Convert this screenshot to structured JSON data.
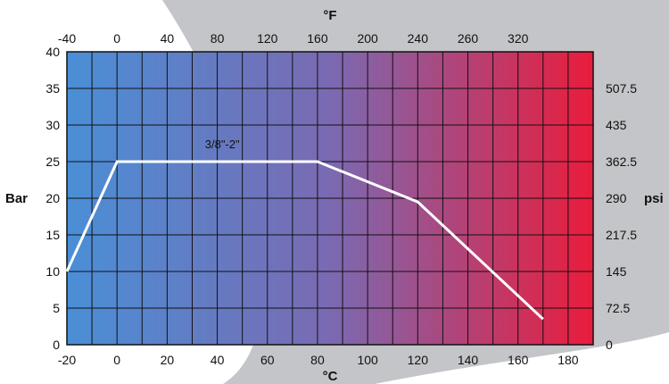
{
  "chart_data": {
    "type": "line",
    "series_label": "3/8\"-2\"",
    "x_bottom": {
      "label": "°C",
      "lim": [
        -20,
        190
      ],
      "ticks": [
        -20,
        0,
        20,
        40,
        60,
        80,
        100,
        120,
        140,
        160,
        180
      ]
    },
    "x_top": {
      "label": "°F",
      "ticks": [
        {
          "text": "-40",
          "at_c": -20
        },
        {
          "text": "0",
          "at_c": 0
        },
        {
          "text": "40",
          "at_c": 20
        },
        {
          "text": "80",
          "at_c": 40
        },
        {
          "text": "120",
          "at_c": 60
        },
        {
          "text": "160",
          "at_c": 80
        },
        {
          "text": "200",
          "at_c": 100
        },
        {
          "text": "240",
          "at_c": 120
        },
        {
          "text": "260",
          "at_c": 140
        },
        {
          "text": "320",
          "at_c": 160
        }
      ]
    },
    "y_left": {
      "label": "Bar",
      "lim": [
        0,
        40
      ],
      "ticks": [
        0,
        5,
        10,
        15,
        20,
        25,
        30,
        35,
        40
      ]
    },
    "y_right": {
      "label": "psi",
      "ticks": [
        {
          "text": "0",
          "at_bar": 0
        },
        {
          "text": "72.5",
          "at_bar": 5
        },
        {
          "text": "145",
          "at_bar": 10
        },
        {
          "text": "217.5",
          "at_bar": 15
        },
        {
          "text": "290",
          "at_bar": 20
        },
        {
          "text": "362.5",
          "at_bar": 25
        },
        {
          "text": "435",
          "at_bar": 30
        },
        {
          "text": "507.5",
          "at_bar": 35
        }
      ]
    },
    "series": [
      {
        "points": [
          [
            -20,
            10
          ],
          [
            0,
            25
          ],
          [
            80,
            25
          ],
          [
            120,
            19.5
          ],
          [
            170,
            3.5
          ]
        ]
      }
    ],
    "grid": true,
    "background_gradient": [
      "#4a8fd6",
      "#7a6ab2",
      "#ea1c3c"
    ],
    "line_color": "#ffffff"
  }
}
